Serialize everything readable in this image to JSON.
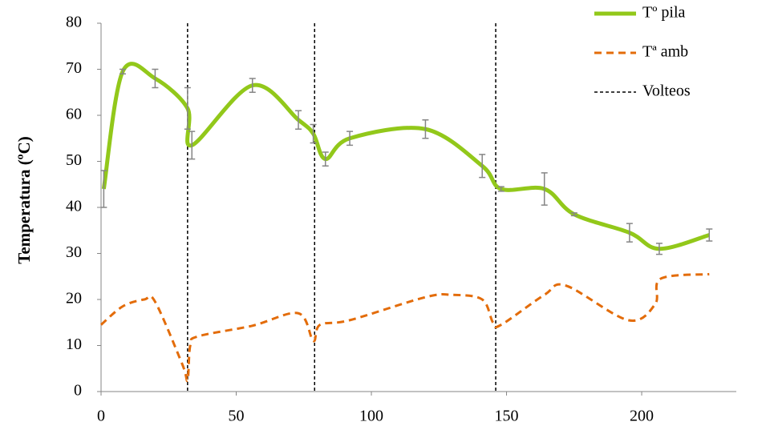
{
  "chart_data": {
    "type": "line",
    "ylabel": "Temperatura (ºC)",
    "xlim": [
      0,
      235
    ],
    "xticks": [
      0,
      50,
      100,
      150,
      200
    ],
    "ylim": [
      0,
      80
    ],
    "yticks": [
      0,
      10,
      20,
      30,
      40,
      50,
      60,
      70,
      80
    ],
    "grid": false,
    "legend": "top-right",
    "smooth": true,
    "series": [
      {
        "name": "Tº pila",
        "color": "#92c81a",
        "style": "solid",
        "x": [
          1,
          8,
          20,
          32,
          33.6,
          56,
          73,
          78.5,
          83,
          92,
          120,
          141,
          148,
          164,
          175,
          195.5,
          206.5,
          225
        ],
        "values": [
          44,
          69.5,
          68,
          61.5,
          53.5,
          66.5,
          59,
          56,
          50.5,
          55,
          57,
          49,
          44,
          44,
          38.5,
          34.5,
          31,
          34
        ],
        "errors": [
          4,
          0.5,
          2,
          4.5,
          3,
          1.5,
          2,
          2,
          1.5,
          1.5,
          2,
          2.5,
          0.5,
          3.5,
          0.3,
          2,
          1.2,
          1.3
        ]
      },
      {
        "name": "Tª amb",
        "color": "#e36c0a",
        "style": "dashed",
        "x": [
          0,
          8,
          16,
          20,
          30,
          32,
          33,
          36,
          56,
          73,
          78.5,
          81,
          92,
          120,
          130,
          141,
          145,
          148,
          164,
          172,
          195,
          205,
          207,
          225
        ],
        "values": [
          14.5,
          18.5,
          20,
          19.5,
          6,
          2.5,
          10,
          12,
          14.3,
          17,
          11,
          14.5,
          15.5,
          20.5,
          21,
          20,
          15,
          14.5,
          21,
          23,
          15.5,
          19,
          24.5,
          25.5
        ]
      }
    ],
    "vlines": {
      "name": "Volteos",
      "color": "#000000",
      "x": [
        32,
        79,
        146
      ]
    }
  }
}
